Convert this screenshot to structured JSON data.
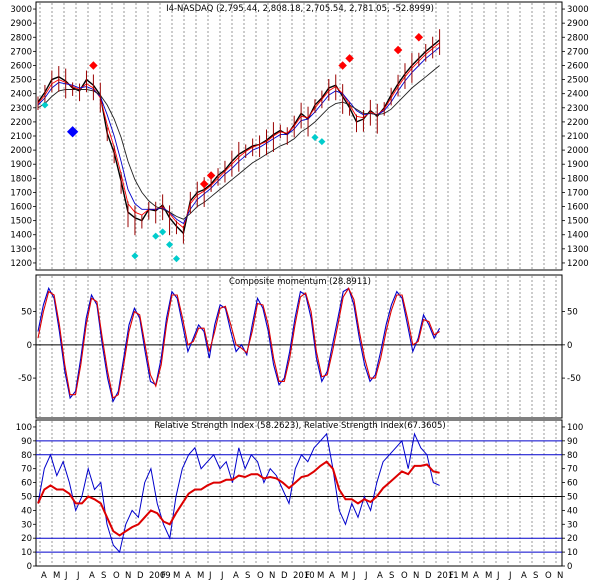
{
  "chart_data": [
    {
      "type": "candlestick",
      "title": "I4-NASDAQ (2,795.44, 2,808.18, 2,705.54, 2,781.05, -52.8999)",
      "yticks": [
        1200,
        1300,
        1400,
        1500,
        1600,
        1700,
        1800,
        1900,
        2000,
        2100,
        2200,
        2300,
        2400,
        2500,
        2600,
        2700,
        2800,
        2900,
        3000
      ],
      "ylim": [
        1150,
        3050
      ],
      "x_labels": [
        "A",
        "M",
        "J",
        "J",
        "A",
        "S",
        "O",
        "N",
        "D",
        "2009",
        "F",
        "M",
        "A",
        "M",
        "J",
        "J",
        "A",
        "S",
        "O",
        "N",
        "D",
        "2010",
        "F",
        "M",
        "A",
        "M",
        "J",
        "J",
        "A",
        "S",
        "O",
        "N",
        "D",
        "2011",
        "F",
        "M",
        "A",
        "M",
        "J",
        "J",
        "A",
        "S",
        "O",
        "N"
      ],
      "series": [
        {
          "name": "",
          "color": "#000000",
          "values": [
            2340,
            2410,
            2500,
            2520,
            2490,
            2440,
            2420,
            2500,
            2460,
            2390,
            2120,
            1980,
            1780,
            1560,
            1520,
            1500,
            1580,
            1570,
            1610,
            1520,
            1460,
            1410,
            1640,
            1700,
            1720,
            1760,
            1820,
            1860,
            1920,
            1970,
            2000,
            2030,
            2040,
            2070,
            2110,
            2140,
            2110,
            2180,
            2260,
            2220,
            2320,
            2370,
            2440,
            2460,
            2380,
            2300,
            2200,
            2220,
            2280,
            2240,
            2300,
            2390,
            2470,
            2540,
            2600,
            2650,
            2700,
            2740,
            2781
          ]
        },
        {
          "name": "",
          "color": "#ff0000",
          "values": [
            2330,
            2390,
            2470,
            2500,
            2480,
            2450,
            2430,
            2470,
            2440,
            2370,
            2180,
            2020,
            1830,
            1620,
            1560,
            1540,
            1580,
            1580,
            1600,
            1550,
            1490,
            1450,
            1620,
            1680,
            1710,
            1750,
            1800,
            1850,
            1900,
            1950,
            1990,
            2020,
            2040,
            2060,
            2100,
            2130,
            2120,
            2170,
            2240,
            2230,
            2300,
            2360,
            2420,
            2450,
            2400,
            2320,
            2240,
            2230,
            2270,
            2250,
            2290,
            2370,
            2450,
            2520,
            2580,
            2630,
            2680,
            2720,
            2760
          ]
        },
        {
          "name": "",
          "color": "#0000cc",
          "values": [
            2320,
            2370,
            2440,
            2480,
            2470,
            2460,
            2440,
            2450,
            2430,
            2380,
            2250,
            2100,
            1920,
            1720,
            1620,
            1580,
            1580,
            1580,
            1590,
            1560,
            1510,
            1480,
            1580,
            1650,
            1690,
            1730,
            1780,
            1830,
            1870,
            1920,
            1960,
            2000,
            2020,
            2050,
            2080,
            2110,
            2110,
            2150,
            2210,
            2220,
            2270,
            2330,
            2390,
            2420,
            2400,
            2340,
            2280,
            2250,
            2260,
            2250,
            2280,
            2340,
            2420,
            2490,
            2550,
            2600,
            2650,
            2690,
            2730
          ]
        },
        {
          "name": "",
          "color": "#222222",
          "values": [
            2300,
            2330,
            2380,
            2420,
            2430,
            2430,
            2430,
            2430,
            2420,
            2390,
            2320,
            2220,
            2090,
            1920,
            1790,
            1700,
            1640,
            1600,
            1580,
            1560,
            1530,
            1510,
            1550,
            1600,
            1630,
            1670,
            1710,
            1750,
            1790,
            1830,
            1870,
            1910,
            1940,
            1970,
            2000,
            2030,
            2050,
            2080,
            2130,
            2160,
            2200,
            2250,
            2300,
            2330,
            2340,
            2320,
            2290,
            2260,
            2260,
            2250,
            2260,
            2290,
            2340,
            2390,
            2440,
            2480,
            2520,
            2560,
            2600
          ]
        },
        {
          "name": "",
          "color": "#00cccc",
          "values": [
            null,
            2320,
            null,
            null,
            null,
            null,
            null,
            null,
            null,
            null,
            null,
            null,
            null,
            null,
            1250,
            null,
            null,
            1390,
            1420,
            1330,
            1230,
            null,
            null,
            null,
            null,
            null,
            null,
            null,
            null,
            null,
            null,
            null,
            null,
            null,
            null,
            null,
            null,
            null,
            null,
            null,
            2090,
            2060,
            null,
            null,
            null,
            null,
            null,
            null,
            null,
            null,
            null,
            null,
            null,
            null,
            null,
            null,
            null,
            null,
            null
          ]
        }
      ]
    },
    {
      "type": "line",
      "title": "Composite momentum (28.8911)",
      "yticks": [
        -50,
        0,
        50
      ],
      "ylim": [
        -110,
        105
      ],
      "series": [
        {
          "name": "",
          "color": "#0000cc",
          "values": [
            20,
            60,
            85,
            70,
            20,
            -40,
            -80,
            -70,
            -20,
            40,
            75,
            60,
            0,
            -50,
            -85,
            -70,
            -20,
            30,
            55,
            40,
            -10,
            -55,
            -60,
            -20,
            40,
            80,
            70,
            30,
            -10,
            10,
            30,
            20,
            -20,
            30,
            60,
            55,
            20,
            -10,
            0,
            -15,
            30,
            70,
            55,
            20,
            -30,
            -60,
            -50,
            -10,
            40,
            80,
            75,
            40,
            -20,
            -55,
            -40,
            0,
            40,
            80,
            85,
            60,
            10,
            -30,
            -55,
            -45,
            -10,
            30,
            60,
            80,
            70,
            30,
            -10,
            10,
            45,
            30,
            10,
            25
          ]
        },
        {
          "name": "",
          "color": "#dd0000",
          "values": [
            10,
            50,
            80,
            75,
            30,
            -30,
            -75,
            -75,
            -30,
            30,
            70,
            65,
            10,
            -40,
            -80,
            -75,
            -30,
            20,
            50,
            45,
            0,
            -45,
            -62,
            -30,
            30,
            75,
            75,
            40,
            0,
            5,
            25,
            25,
            -10,
            20,
            55,
            58,
            30,
            0,
            -5,
            -12,
            20,
            62,
            60,
            30,
            -20,
            -55,
            -55,
            -20,
            30,
            72,
            78,
            50,
            -10,
            -48,
            -45,
            -10,
            30,
            72,
            85,
            68,
            20,
            -20,
            -50,
            -50,
            -20,
            20,
            52,
            75,
            75,
            40,
            0,
            5,
            38,
            35,
            15,
            20
          ]
        }
      ]
    },
    {
      "type": "line",
      "title": "Relative Strength Index (58.2623), Relative Strength Index(67.3605)",
      "yticks": [
        0,
        10,
        20,
        30,
        40,
        50,
        60,
        70,
        80,
        90,
        100
      ],
      "ylim": [
        0,
        105
      ],
      "hlines": [
        10,
        20,
        50,
        80,
        90
      ],
      "series": [
        {
          "name": "",
          "color": "#0000cc",
          "values": [
            45,
            70,
            80,
            65,
            75,
            60,
            40,
            50,
            70,
            55,
            60,
            30,
            15,
            10,
            30,
            40,
            35,
            60,
            70,
            45,
            30,
            20,
            50,
            70,
            80,
            85,
            70,
            75,
            80,
            70,
            75,
            60,
            85,
            70,
            80,
            75,
            60,
            70,
            65,
            55,
            45,
            70,
            80,
            75,
            85,
            90,
            95,
            70,
            40,
            30,
            45,
            35,
            50,
            40,
            60,
            75,
            80,
            85,
            90,
            70,
            95,
            85,
            80,
            60,
            58
          ]
        },
        {
          "name": "",
          "color": "#dd0000",
          "values": [
            45,
            55,
            58,
            55,
            55,
            52,
            45,
            45,
            50,
            48,
            45,
            35,
            25,
            22,
            25,
            28,
            30,
            35,
            40,
            38,
            32,
            30,
            38,
            45,
            52,
            55,
            55,
            58,
            60,
            60,
            62,
            62,
            65,
            64,
            66,
            66,
            63,
            64,
            63,
            60,
            56,
            60,
            64,
            65,
            68,
            72,
            75,
            70,
            55,
            48,
            48,
            45,
            48,
            46,
            50,
            56,
            60,
            64,
            68,
            66,
            72,
            72,
            73,
            68,
            67
          ]
        }
      ]
    }
  ]
}
